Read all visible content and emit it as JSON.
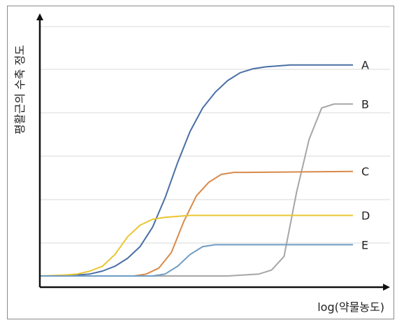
{
  "chart_data": {
    "type": "line",
    "title": "",
    "xlabel": "log(약물농도)",
    "ylabel": "평활근의 수축 정도",
    "grid": true,
    "legend": "end-of-line labels",
    "series": [
      {
        "name": "A",
        "color": "#4a6fa5",
        "points": [
          [
            0,
            0.02
          ],
          [
            20,
            0.02
          ],
          [
            30,
            0.025
          ],
          [
            40,
            0.03
          ],
          [
            50,
            0.045
          ],
          [
            60,
            0.07
          ],
          [
            70,
            0.11
          ],
          [
            80,
            0.17
          ],
          [
            90,
            0.27
          ],
          [
            100,
            0.42
          ],
          [
            110,
            0.6
          ],
          [
            120,
            0.76
          ],
          [
            130,
            0.88
          ],
          [
            140,
            0.96
          ],
          [
            150,
            1.02
          ],
          [
            160,
            1.06
          ],
          [
            170,
            1.08
          ],
          [
            180,
            1.09
          ],
          [
            190,
            1.095
          ],
          [
            200,
            1.1
          ],
          [
            250,
            1.1
          ]
        ]
      },
      {
        "name": "B",
        "color": "#a6a6a6",
        "points": [
          [
            0,
            0.02
          ],
          [
            150,
            0.02
          ],
          [
            175,
            0.03
          ],
          [
            185,
            0.05
          ],
          [
            195,
            0.12
          ],
          [
            205,
            0.45
          ],
          [
            215,
            0.72
          ],
          [
            225,
            0.88
          ],
          [
            235,
            0.9
          ],
          [
            245,
            0.9
          ],
          [
            250,
            0.9
          ]
        ]
      },
      {
        "name": "C",
        "color": "#d98a4a",
        "points": [
          [
            0,
            0.02
          ],
          [
            75,
            0.02
          ],
          [
            85,
            0.03
          ],
          [
            95,
            0.06
          ],
          [
            105,
            0.14
          ],
          [
            115,
            0.3
          ],
          [
            125,
            0.43
          ],
          [
            135,
            0.5
          ],
          [
            145,
            0.54
          ],
          [
            155,
            0.55
          ],
          [
            165,
            0.55
          ],
          [
            250,
            0.555
          ]
        ]
      },
      {
        "name": "D",
        "color": "#e9c531",
        "points": [
          [
            0,
            0.02
          ],
          [
            10,
            0.022
          ],
          [
            20,
            0.025
          ],
          [
            30,
            0.03
          ],
          [
            40,
            0.045
          ],
          [
            50,
            0.07
          ],
          [
            60,
            0.13
          ],
          [
            70,
            0.22
          ],
          [
            80,
            0.28
          ],
          [
            90,
            0.31
          ],
          [
            100,
            0.32
          ],
          [
            110,
            0.325
          ],
          [
            120,
            0.33
          ],
          [
            250,
            0.33
          ]
        ]
      },
      {
        "name": "E",
        "color": "#6e9cc4",
        "points": [
          [
            0,
            0.02
          ],
          [
            90,
            0.02
          ],
          [
            100,
            0.03
          ],
          [
            110,
            0.07
          ],
          [
            120,
            0.13
          ],
          [
            130,
            0.17
          ],
          [
            140,
            0.18
          ],
          [
            150,
            0.18
          ],
          [
            250,
            0.18
          ]
        ]
      }
    ]
  }
}
